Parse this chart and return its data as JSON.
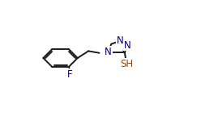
{
  "background_color": "#ffffff",
  "bond_color": "#1a1a1a",
  "atom_colors": {
    "N": "#00008b",
    "F": "#00008b",
    "S": "#8b4513",
    "default": "#1a1a1a"
  },
  "lw": 1.4,
  "fs": 8.5,
  "figsize": [
    2.48,
    1.44
  ],
  "dpi": 100
}
